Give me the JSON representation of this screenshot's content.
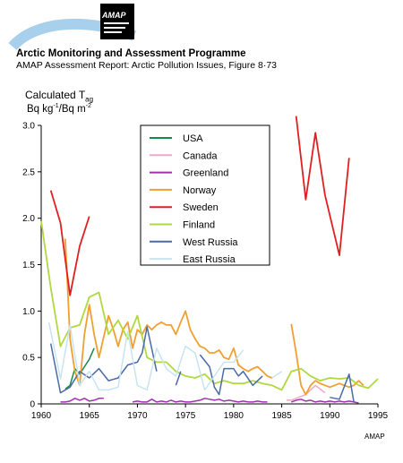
{
  "header": {
    "logo_text": "AMAP",
    "title": "Arctic Monitoring and Assessment Programme",
    "subtitle": "AMAP Assessment Report: Arctic Pollution Issues, Figure 8·73"
  },
  "credit": "AMAP",
  "chart_data": {
    "type": "line",
    "ylabel_line1": "Calculated T",
    "ylabel_line1_sub": "ag",
    "ylabel_line2_a": "Bq kg",
    "ylabel_line2_sup1": "-1",
    "ylabel_line2_b": "/Bq m",
    "ylabel_line2_sup2": "-2",
    "xlim": [
      1960,
      1995
    ],
    "ylim": [
      0,
      3.0
    ],
    "xticks": [
      "1960",
      "1965",
      "1970",
      "1975",
      "1980",
      "1985",
      "1990",
      "1995"
    ],
    "yticks": [
      "0",
      "0.5",
      "1.0",
      "1.5",
      "2.0",
      "2.5",
      "3.0"
    ],
    "legend_position": "top-center",
    "series": [
      {
        "name": "USA",
        "color": "#1a8a4a",
        "segments": [
          [
            [
              1962.5,
              0.16
            ],
            [
              1963,
              0.2
            ],
            [
              1963.5,
              0.38
            ],
            [
              1964,
              0.32
            ],
            [
              1964.5,
              0.4
            ],
            [
              1965,
              0.48
            ],
            [
              1965.5,
              0.6
            ]
          ]
        ]
      },
      {
        "name": "Canada",
        "color": "#f0a8c8",
        "segments": [
          [
            [
              1985.5,
              0.04
            ],
            [
              1986,
              0.04
            ],
            [
              1986.5,
              0.06
            ],
            [
              1987,
              0.08
            ],
            [
              1987.5,
              0.1
            ],
            [
              1988,
              0.15
            ],
            [
              1988.5,
              0.2
            ],
            [
              1989,
              0.16
            ],
            [
              1989.5,
              0.12
            ]
          ]
        ]
      },
      {
        "name": "Greenland",
        "color": "#a030b0",
        "segments": [
          [
            [
              1962,
              0.02
            ],
            [
              1962.5,
              0.02
            ],
            [
              1963,
              0.03
            ],
            [
              1963.5,
              0.06
            ],
            [
              1964,
              0.04
            ],
            [
              1964.5,
              0.06
            ],
            [
              1965,
              0.03
            ],
            [
              1965.5,
              0.04
            ],
            [
              1966,
              0.06
            ],
            [
              1966.5,
              0.06
            ]
          ],
          [
            [
              1969.5,
              0.02
            ],
            [
              1970,
              0.03
            ],
            [
              1970.5,
              0.02
            ],
            [
              1971,
              0.02
            ],
            [
              1971.5,
              0.05
            ],
            [
              1972,
              0.02
            ],
            [
              1972.5,
              0.03
            ],
            [
              1973,
              0.02
            ],
            [
              1973.5,
              0.04
            ],
            [
              1974,
              0.02
            ],
            [
              1974.5,
              0.03
            ],
            [
              1975,
              0.02
            ],
            [
              1975.5,
              0.02
            ],
            [
              1976,
              0.03
            ],
            [
              1976.5,
              0.04
            ],
            [
              1977,
              0.06
            ],
            [
              1977.5,
              0.05
            ],
            [
              1978,
              0.04
            ],
            [
              1978.5,
              0.05
            ],
            [
              1979,
              0.03
            ],
            [
              1979.5,
              0.04
            ],
            [
              1980,
              0.03
            ],
            [
              1980.5,
              0.02
            ],
            [
              1981,
              0.03
            ],
            [
              1981.5,
              0.02
            ],
            [
              1982,
              0.02
            ],
            [
              1982.5,
              0.03
            ],
            [
              1983,
              0.02
            ],
            [
              1983.5,
              0.02
            ]
          ],
          [
            [
              1986,
              0.02
            ],
            [
              1986.5,
              0.04
            ],
            [
              1987,
              0.05
            ],
            [
              1987.5,
              0.03
            ],
            [
              1988,
              0.04
            ],
            [
              1988.5,
              0.02
            ],
            [
              1989,
              0.03
            ],
            [
              1989.5,
              0.02
            ],
            [
              1990,
              0.03
            ],
            [
              1990.5,
              0.02
            ],
            [
              1991,
              0.03
            ],
            [
              1991.5,
              0.02
            ],
            [
              1992,
              0.03
            ],
            [
              1992.5,
              0.02
            ],
            [
              1993,
              0.01
            ]
          ]
        ]
      },
      {
        "name": "Norway",
        "color": "#f0a030",
        "segments": [
          [
            [
              1962.5,
              1.78
            ],
            [
              1963,
              0.7
            ],
            [
              1963.5,
              0.35
            ],
            [
              1964,
              0.2
            ],
            [
              1964.5,
              0.75
            ],
            [
              1965,
              1.07
            ],
            [
              1965.5,
              0.75
            ],
            [
              1966,
              0.5
            ],
            [
              1966.5,
              0.72
            ],
            [
              1967,
              0.95
            ],
            [
              1967.5,
              0.8
            ],
            [
              1968,
              0.62
            ],
            [
              1968.5,
              0.8
            ],
            [
              1969,
              0.88
            ],
            [
              1969.5,
              0.6
            ],
            [
              1970,
              0.8
            ],
            [
              1970.5,
              0.75
            ],
            [
              1971,
              0.85
            ],
            [
              1971.5,
              0.8
            ],
            [
              1972,
              0.85
            ],
            [
              1972.5,
              0.88
            ],
            [
              1973,
              0.85
            ],
            [
              1973.5,
              0.85
            ],
            [
              1974,
              0.75
            ],
            [
              1974.5,
              0.88
            ],
            [
              1975,
              1.0
            ],
            [
              1975.5,
              0.8
            ],
            [
              1976,
              0.7
            ],
            [
              1976.5,
              0.62
            ],
            [
              1977,
              0.6
            ],
            [
              1977.5,
              0.55
            ],
            [
              1978,
              0.55
            ],
            [
              1978.5,
              0.58
            ],
            [
              1979,
              0.5
            ],
            [
              1979.5,
              0.48
            ],
            [
              1980,
              0.6
            ],
            [
              1980.5,
              0.42
            ],
            [
              1981,
              0.38
            ],
            [
              1981.5,
              0.35
            ],
            [
              1982,
              0.38
            ],
            [
              1982.5,
              0.4
            ],
            [
              1983,
              0.35
            ],
            [
              1983.5,
              0.3
            ],
            [
              1984,
              0.28
            ]
          ],
          [
            [
              1986,
              0.86
            ],
            [
              1986.5,
              0.55
            ],
            [
              1987,
              0.2
            ],
            [
              1987.5,
              0.1
            ],
            [
              1988,
              0.2
            ],
            [
              1988.5,
              0.25
            ],
            [
              1989,
              0.22
            ],
            [
              1989.5,
              0.2
            ],
            [
              1990,
              0.18
            ],
            [
              1990.5,
              0.2
            ],
            [
              1991,
              0.22
            ],
            [
              1991.5,
              0.2
            ],
            [
              1992,
              0.18
            ],
            [
              1992.5,
              0.2
            ],
            [
              1993,
              0.25
            ],
            [
              1993.5,
              0.2
            ]
          ]
        ]
      },
      {
        "name": "Sweden",
        "color": "#e02020",
        "segments": [
          [
            [
              1961,
              2.3
            ],
            [
              1962,
              1.95
            ],
            [
              1963,
              1.17
            ],
            [
              1964,
              1.7
            ],
            [
              1965,
              2.02
            ]
          ],
          [
            [
              1986.5,
              3.1
            ],
            [
              1987.5,
              2.2
            ],
            [
              1988.5,
              2.92
            ],
            [
              1989.5,
              2.25
            ],
            [
              1991,
              1.6
            ],
            [
              1992,
              2.65
            ]
          ]
        ]
      },
      {
        "name": "Finland",
        "color": "#b0d840",
        "segments": [
          [
            [
              1960,
              1.97
            ],
            [
              1961,
              1.25
            ],
            [
              1962,
              0.62
            ],
            [
              1963,
              0.82
            ],
            [
              1964,
              0.85
            ],
            [
              1965,
              1.15
            ],
            [
              1966,
              1.2
            ],
            [
              1967,
              0.75
            ],
            [
              1968,
              0.9
            ],
            [
              1969,
              0.7
            ],
            [
              1970,
              0.95
            ],
            [
              1971,
              0.5
            ],
            [
              1972,
              0.45
            ],
            [
              1973,
              0.45
            ],
            [
              1974,
              0.35
            ],
            [
              1975,
              0.3
            ],
            [
              1976,
              0.28
            ],
            [
              1977,
              0.32
            ],
            [
              1978,
              0.22
            ],
            [
              1979,
              0.25
            ],
            [
              1980,
              0.22
            ],
            [
              1981,
              0.22
            ],
            [
              1982,
              0.25
            ],
            [
              1983,
              0.22
            ],
            [
              1984,
              0.2
            ],
            [
              1985,
              0.15
            ],
            [
              1986,
              0.35
            ],
            [
              1987,
              0.38
            ],
            [
              1988,
              0.3
            ],
            [
              1989,
              0.25
            ],
            [
              1990,
              0.28
            ],
            [
              1991,
              0.27
            ],
            [
              1992,
              0.28
            ],
            [
              1993,
              0.2
            ],
            [
              1994,
              0.17
            ],
            [
              1995,
              0.27
            ]
          ]
        ]
      },
      {
        "name": "West Russia",
        "color": "#4a6aa8",
        "segments": [
          [
            [
              1961,
              0.65
            ],
            [
              1962,
              0.12
            ],
            [
              1963,
              0.18
            ],
            [
              1964,
              0.35
            ],
            [
              1965,
              0.28
            ],
            [
              1966,
              0.38
            ],
            [
              1967,
              0.25
            ],
            [
              1968,
              0.28
            ],
            [
              1969,
              0.42
            ],
            [
              1970,
              0.45
            ],
            [
              1970.5,
              0.55
            ],
            [
              1971,
              0.83
            ],
            [
              1972,
              0.35
            ]
          ],
          [
            [
              1974,
              0.2
            ],
            [
              1974.5,
              0.35
            ]
          ],
          [
            [
              1976.5,
              0.53
            ],
            [
              1977.5,
              0.4
            ],
            [
              1978,
              0.18
            ],
            [
              1978.5,
              0.1
            ],
            [
              1979,
              0.38
            ],
            [
              1980,
              0.38
            ],
            [
              1980.5,
              0.3
            ],
            [
              1981,
              0.35
            ],
            [
              1982,
              0.2
            ],
            [
              1983,
              0.3
            ]
          ],
          [
            [
              1990,
              0.07
            ],
            [
              1991,
              0.05
            ],
            [
              1992,
              0.32
            ],
            [
              1992.5,
              0.02
            ]
          ]
        ]
      },
      {
        "name": "East Russia",
        "color": "#c8e4f0",
        "segments": [
          [
            [
              1960.8,
              0.88
            ],
            [
              1962,
              0.27
            ],
            [
              1963,
              0.85
            ],
            [
              1964,
              0.2
            ],
            [
              1965,
              0.35
            ],
            [
              1966,
              0.15
            ],
            [
              1967,
              0.15
            ],
            [
              1968,
              0.18
            ],
            [
              1969,
              0.78
            ],
            [
              1970,
              0.2
            ],
            [
              1971,
              0.15
            ],
            [
              1972,
              0.6
            ],
            [
              1973,
              0.38
            ],
            [
              1974,
              0.3
            ],
            [
              1975,
              0.62
            ],
            [
              1976,
              0.55
            ],
            [
              1977,
              0.15
            ],
            [
              1978,
              0.3
            ],
            [
              1979,
              0.45
            ],
            [
              1980,
              0.45
            ],
            [
              1981,
              0.58
            ]
          ],
          [
            [
              1984,
              0.28
            ],
            [
              1985,
              0.35
            ]
          ]
        ]
      }
    ]
  }
}
